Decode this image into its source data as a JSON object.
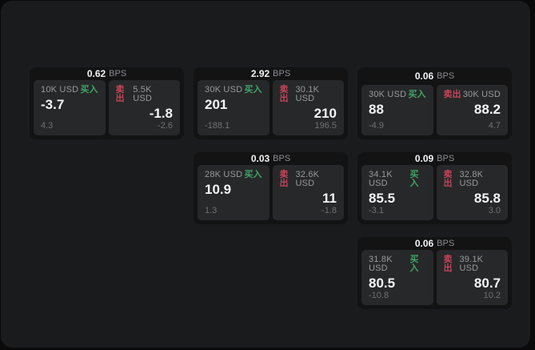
{
  "labels": {
    "bps_unit": "BPS",
    "buy": "买入",
    "sell": "卖出"
  },
  "theme": {
    "outer_bg": "#0a0a0b",
    "panel_bg": "#1a1b1c",
    "card_bg": "#131314",
    "tile_bg": "#272829",
    "buy_color": "#3fa468",
    "sell_color": "#c64459",
    "text_primary": "#f4f5f6",
    "text_muted": "#98999d",
    "text_dim": "#6f7074"
  },
  "cards": [
    {
      "bps": "0.62",
      "buy": {
        "amount": "10K USD",
        "price": "-3.7",
        "delta": "4.3"
      },
      "sell": {
        "amount": "5.5K USD",
        "price": "-1.8",
        "delta": "-2.6"
      }
    },
    {
      "bps": "2.92",
      "buy": {
        "amount": "30K USD",
        "price": "201",
        "delta": "-188.1"
      },
      "sell": {
        "amount": "30.1K USD",
        "price": "210",
        "delta": "196.5"
      }
    },
    {
      "bps": "0.06",
      "buy": {
        "amount": "30K USD",
        "price": "88",
        "delta": "-4.9"
      },
      "sell": {
        "amount": "30K USD",
        "price": "88.2",
        "delta": "4.7"
      }
    },
    {
      "bps": "0.03",
      "buy": {
        "amount": "28K USD",
        "price": "10.9",
        "delta": "1.3"
      },
      "sell": {
        "amount": "32.6K USD",
        "price": "11",
        "delta": "-1.8"
      }
    },
    {
      "bps": "0.09",
      "buy": {
        "amount": "34.1K USD",
        "price": "85.5",
        "delta": "-3.1"
      },
      "sell": {
        "amount": "32.8K USD",
        "price": "85.8",
        "delta": "3.0"
      }
    },
    {
      "bps": "0.06",
      "buy": {
        "amount": "31.8K USD",
        "price": "80.5",
        "delta": "-10.8"
      },
      "sell": {
        "amount": "39.1K USD",
        "price": "80.7",
        "delta": "10.2"
      }
    }
  ]
}
